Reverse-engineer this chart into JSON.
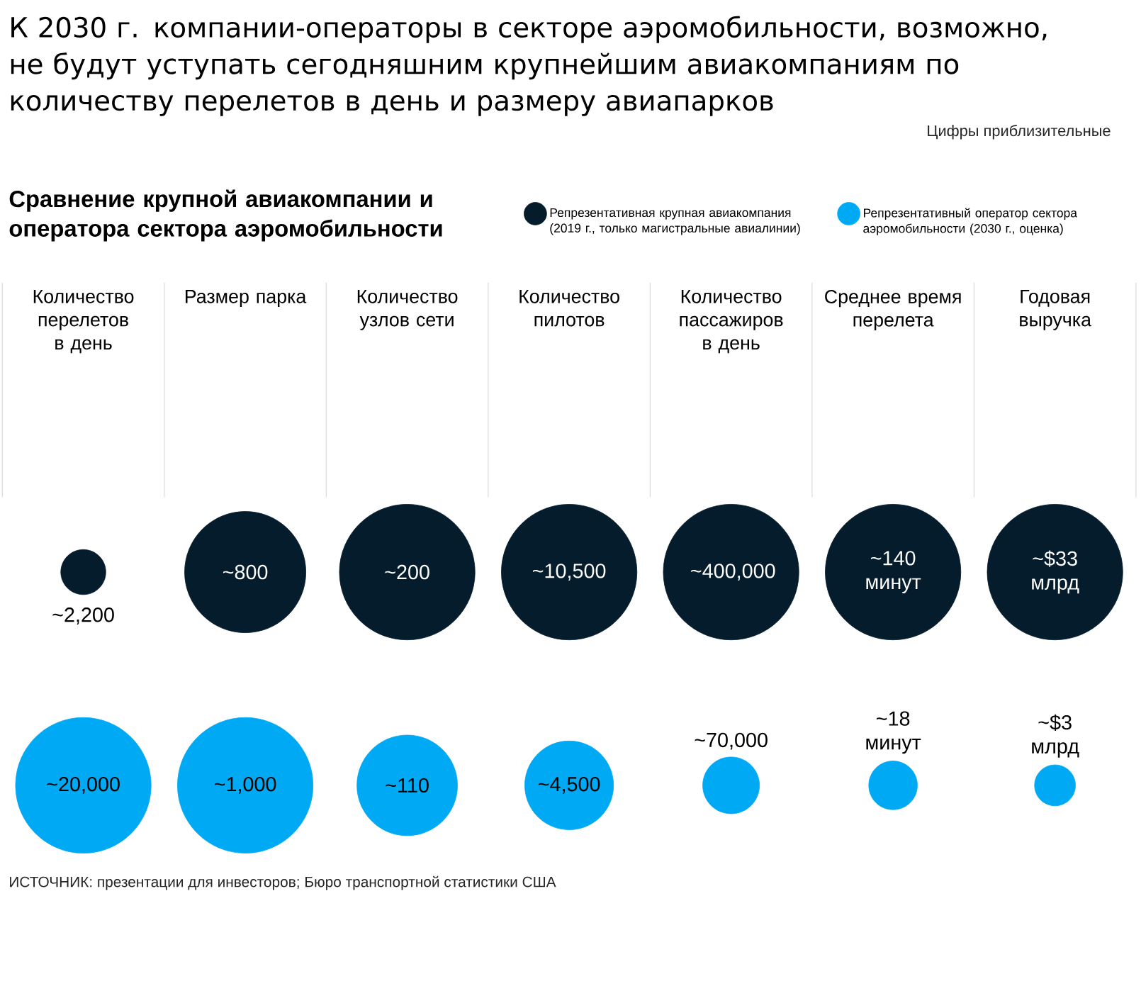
{
  "chart_data": {
    "type": "other",
    "title": "К 2030 г. компании-операторы в секторе аэромобильности, возможно, не будут уступать сегодняшним крупнейшим авиакомпаниям по количеству перелетов в день и размеру авиапарков",
    "subtitle": "Сравнение крупной авиакомпании и оператора сектора аэромобильности",
    "annotations": [
      "Цифры приблизительные",
      "ИСТОЧНИК: презентации для инвесторов; Бюро транспортной статистики США"
    ],
    "categories": [
      "Количество перелетов в день",
      "Размер парка",
      "Количество узлов сети",
      "Количество пилотов",
      "Количество пассажиров в день",
      "Среднее время перелета",
      "Годовая выручка"
    ],
    "series": [
      {
        "name": "Репрезентативная крупная авиакомпания (2019 г., только магистральные авиалинии)",
        "color": "#051c2c",
        "values": [
          2200,
          800,
          200,
          10500,
          400000,
          140,
          33
        ],
        "value_labels": [
          "~2,200",
          "~800",
          "~200",
          "~10,500",
          "~400,000",
          "~140 минут",
          "~$33 млрд"
        ]
      },
      {
        "name": "Репрезентативный оператор сектора аэромобильности (2030 г., оценка)",
        "color": "#00a9f4",
        "values": [
          20000,
          1000,
          110,
          4500,
          70000,
          18,
          3
        ],
        "value_labels": [
          "~20,000",
          "~1,000",
          "~110",
          "~4,500",
          "~70,000",
          "~18 минут",
          "~$3 млрд"
        ]
      }
    ],
    "legend": "top right"
  }
}
